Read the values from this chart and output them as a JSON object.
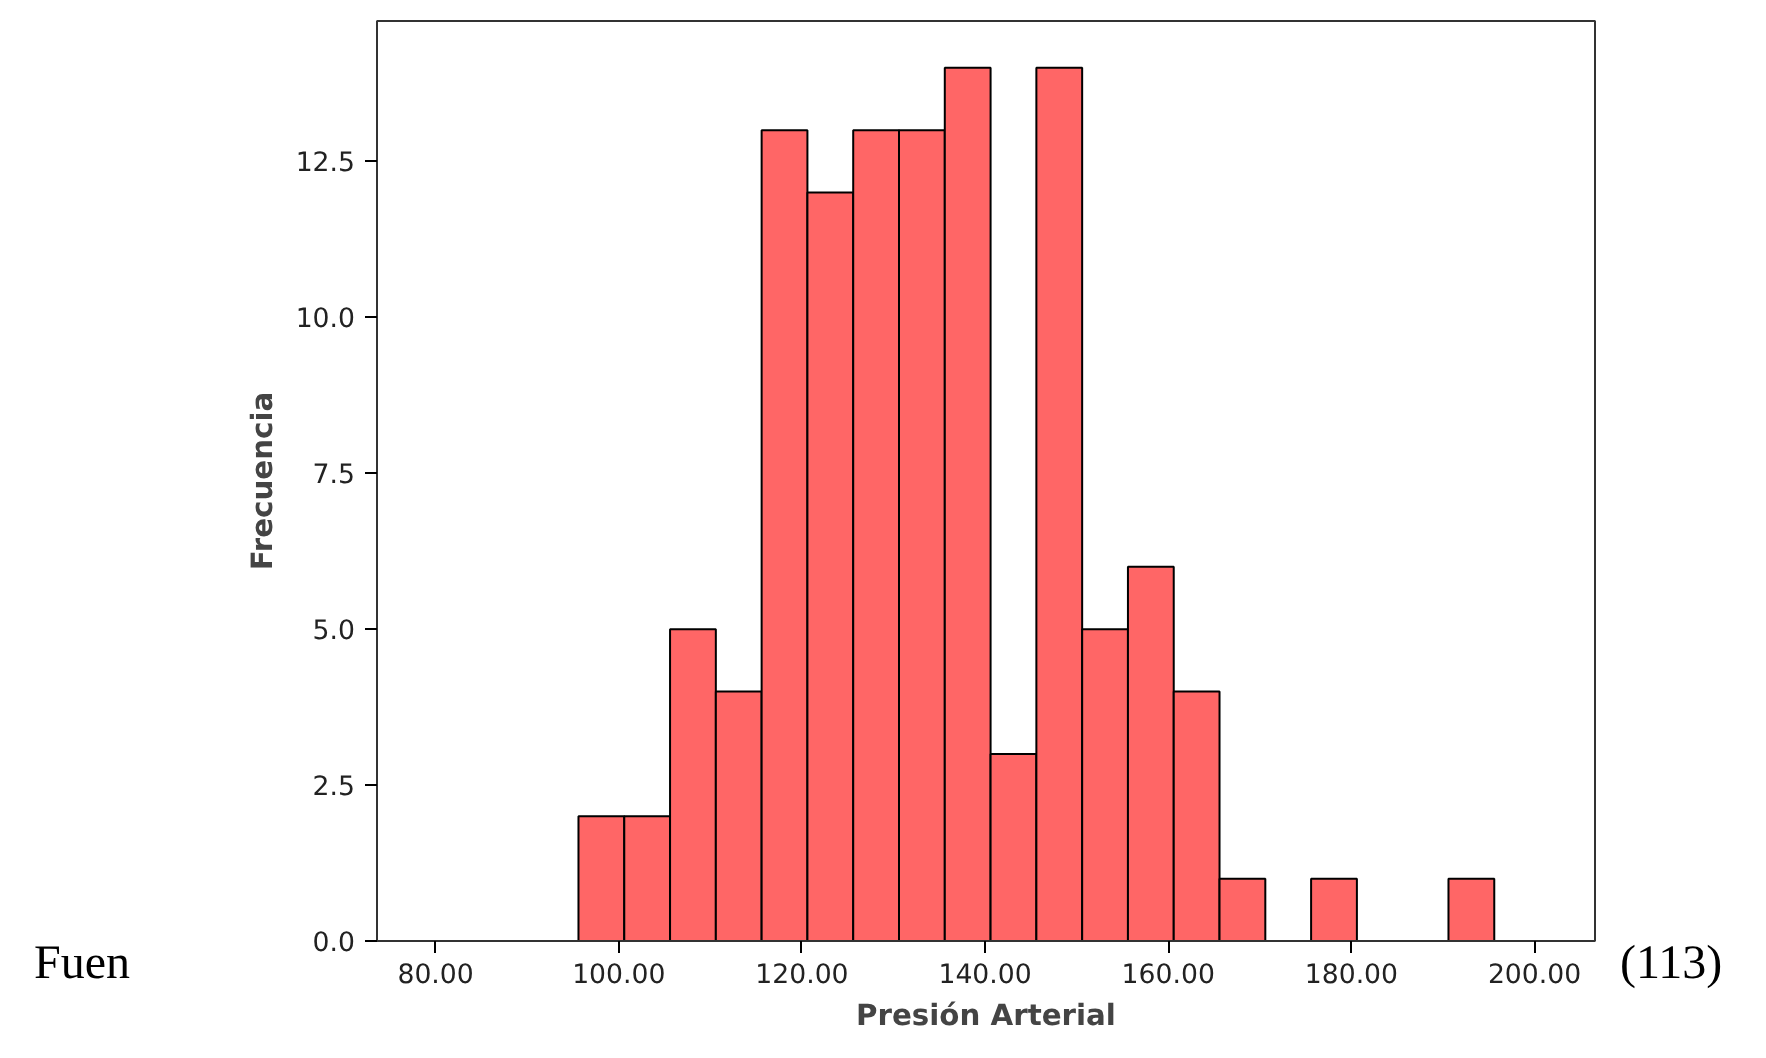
{
  "chart_data": {
    "type": "histogram",
    "xlabel": "Presión Arterial",
    "ylabel": "Frecuencia",
    "bins": [
      95.6,
      100.6,
      105.6,
      110.6,
      115.6,
      120.6,
      125.6,
      130.6,
      135.6,
      140.6,
      145.6,
      150.6,
      155.6,
      160.6,
      165.6,
      170.6,
      175.6,
      180.6,
      185.6,
      190.6,
      195.6
    ],
    "values": [
      2,
      2,
      5,
      4,
      13,
      12,
      13,
      13,
      14,
      3,
      14,
      5,
      6,
      4,
      1,
      0,
      1,
      0,
      0,
      1
    ],
    "color": "#ff6666",
    "xlim": [
      73.6,
      206.6
    ],
    "ylim": [
      0,
      14.75
    ],
    "xticks": [
      {
        "value": 80,
        "label": "80.00"
      },
      {
        "value": 100,
        "label": "100.00"
      },
      {
        "value": 120,
        "label": "120.00"
      },
      {
        "value": 140,
        "label": "140.00"
      },
      {
        "value": 160,
        "label": "160.00"
      },
      {
        "value": 180,
        "label": "180.00"
      },
      {
        "value": 200,
        "label": "200.00"
      }
    ],
    "yticks": [
      {
        "value": 0,
        "label": "0.0"
      },
      {
        "value": 2.5,
        "label": "2.5"
      },
      {
        "value": 5,
        "label": "5.0"
      },
      {
        "value": 7.5,
        "label": "7.5"
      },
      {
        "value": 10,
        "label": "10.0"
      },
      {
        "value": 12.5,
        "label": "12.5"
      }
    ],
    "grid": false,
    "annotations": [
      "Fuen",
      "(113)"
    ]
  }
}
